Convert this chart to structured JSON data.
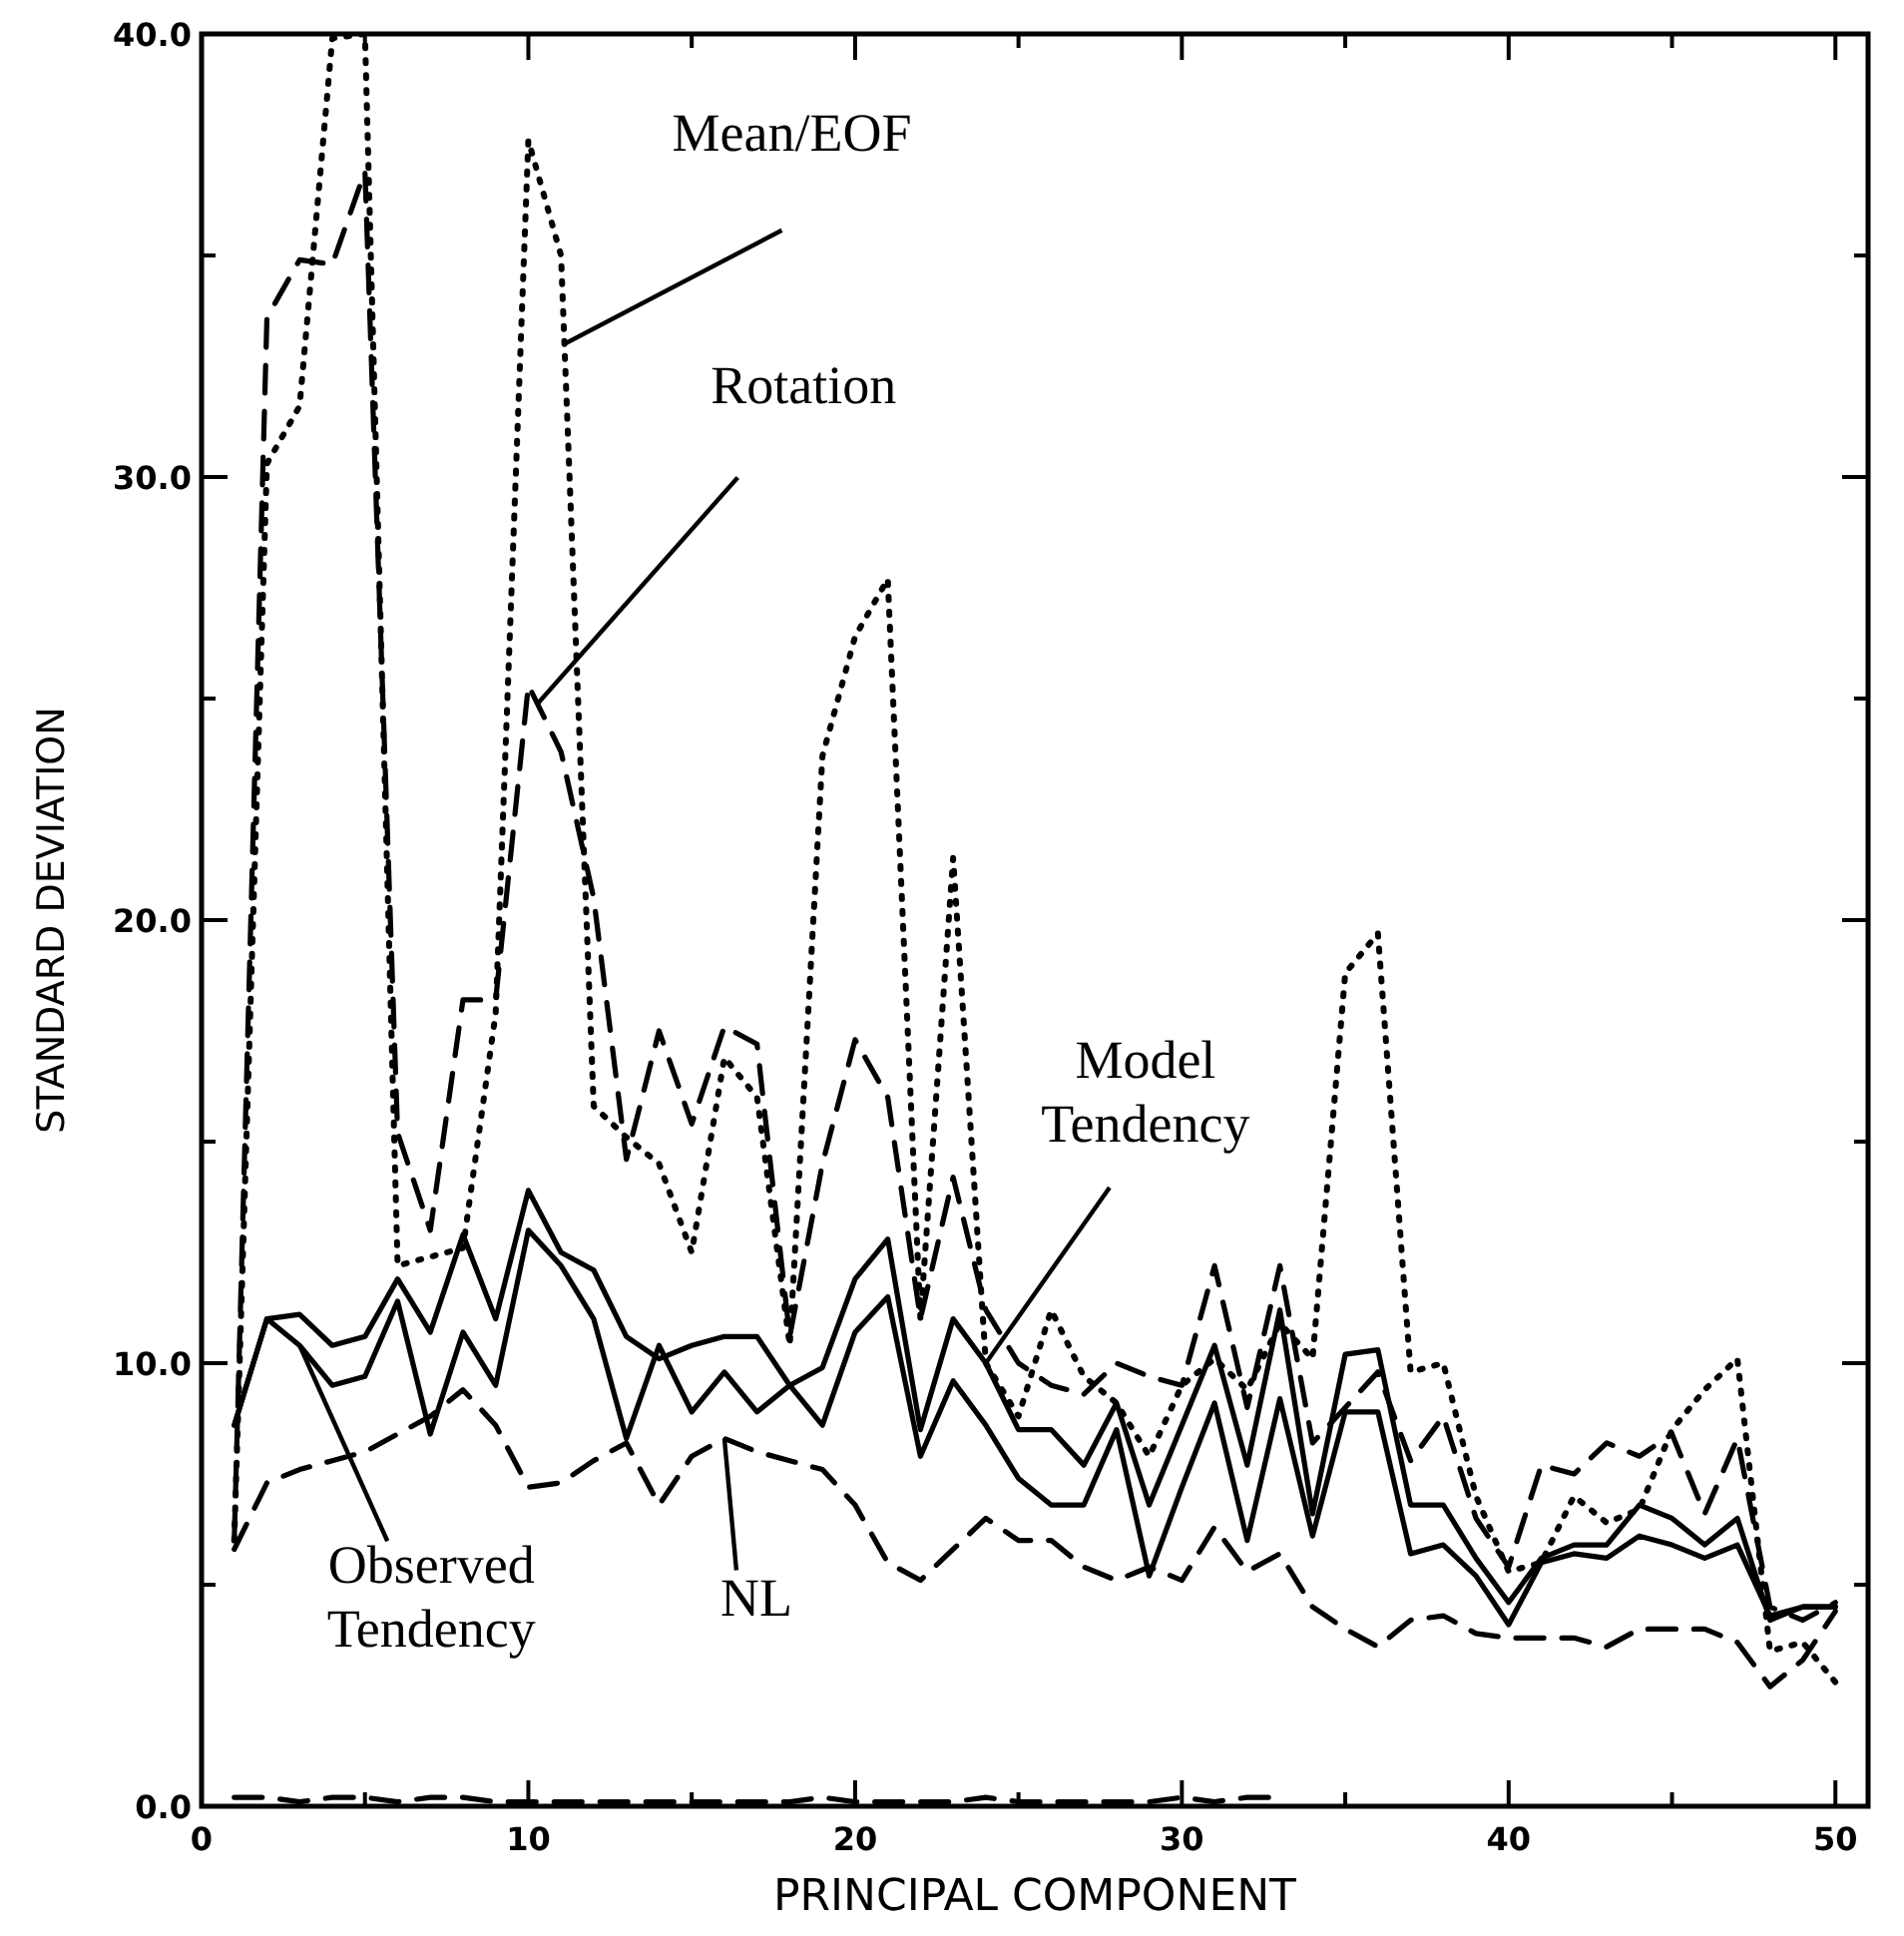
{
  "chart_data": {
    "type": "line",
    "xlabel": "PRINCIPAL COMPONENT",
    "ylabel": "STANDARD DEVIATION",
    "x": [
      1,
      2,
      3,
      4,
      5,
      6,
      7,
      8,
      9,
      10,
      11,
      12,
      13,
      14,
      15,
      16,
      17,
      18,
      19,
      20,
      21,
      22,
      23,
      24,
      25,
      26,
      27,
      28,
      29,
      30,
      31,
      32,
      33,
      34,
      35,
      36,
      37,
      38,
      39,
      40,
      41,
      42,
      43,
      44,
      45,
      46,
      47,
      48,
      49,
      50
    ],
    "xlim": [
      0,
      51
    ],
    "xticks": [
      0,
      {
        "value": 5,
        "label": null
      },
      10,
      {
        "value": 15,
        "label": null
      },
      20,
      {
        "value": 25,
        "label": null
      },
      30,
      {
        "value": 35,
        "label": null
      },
      40,
      {
        "value": 45,
        "label": null
      },
      50
    ],
    "annotations": [
      {
        "text": "Mean/EOF",
        "x": 11.1,
        "y": 33.0
      },
      {
        "text": "Rotation",
        "x": 10.3,
        "y": 24.9
      },
      {
        "text": "Model Tendency",
        "x": 24,
        "y": 10.0
      },
      {
        "text": "Observed Tendency",
        "x": 3,
        "y": 10.4
      },
      {
        "text": "NL",
        "x": 16,
        "y": 8.3
      }
    ],
    "ylim": [
      0,
      40
    ],
    "yticks": [
      {
        "value": 0,
        "label": "0.0"
      },
      {
        "value": 5,
        "label": null
      },
      {
        "value": 10,
        "label": "10.0"
      },
      {
        "value": 15,
        "label": null
      },
      {
        "value": 20,
        "label": "20.0"
      },
      {
        "value": 25,
        "label": null
      },
      {
        "value": 30,
        "label": "30.0"
      },
      {
        "value": 35,
        "label": null
      },
      {
        "value": 40,
        "label": "40.0"
      }
    ],
    "series": [
      {
        "color": "#000000",
        "line_style": "dotted",
        "values": [
          6.0,
          30.3,
          31.6,
          39.9,
          40.0,
          12.2,
          12.4,
          12.6,
          17.9,
          37.6,
          35.0,
          15.8,
          15.1,
          14.5,
          12.5,
          16.9,
          16.0,
          10.4,
          23.7,
          26.4,
          27.7,
          11.0,
          21.4,
          10.0,
          8.8,
          11.2,
          9.7,
          9.1,
          7.9,
          9.5,
          10.1,
          9.4,
          10.9,
          10.1,
          18.8,
          19.7,
          9.8,
          10.0,
          7.0,
          5.3,
          5.5,
          7.0,
          6.4,
          6.7,
          8.5,
          9.4,
          10.1,
          3.5,
          3.7,
          2.8
        ]
      },
      {
        "color": "#000000",
        "line_style": "dashed",
        "values": [
          6.0,
          33.6,
          34.9,
          34.8,
          36.9,
          15.2,
          13.0,
          18.2,
          18.2,
          25.3,
          23.8,
          20.5,
          14.6,
          17.5,
          15.4,
          17.6,
          17.2,
          10.6,
          14.5,
          17.3,
          16.0,
          11.0,
          14.2,
          11.2,
          10.0,
          9.5,
          9.3,
          10.0,
          9.7,
          9.5,
          12.2,
          9.0,
          12.2,
          8.2,
          9.0,
          9.8,
          7.8,
          8.8,
          6.5,
          5.4,
          7.7,
          7.5,
          8.2,
          7.9,
          8.4,
          6.6,
          8.3,
          4.5,
          4.2,
          4.6
        ]
      },
      {
        "color": "#000000",
        "line_style": "solid",
        "values": [
          8.6,
          11.0,
          11.1,
          10.4,
          10.6,
          11.9,
          10.7,
          12.9,
          11.0,
          13.9,
          12.5,
          12.1,
          10.6,
          10.1,
          10.4,
          10.6,
          10.6,
          9.5,
          9.9,
          11.9,
          12.8,
          8.5,
          11.0,
          10.0,
          8.5,
          8.5,
          7.7,
          9.1,
          6.8,
          8.6,
          10.4,
          7.7,
          11.2,
          6.6,
          10.2,
          10.3,
          6.8,
          6.8,
          5.6,
          4.6,
          5.6,
          5.9,
          5.9,
          6.8,
          6.5,
          5.9,
          6.5,
          4.2,
          4.5,
          4.5
        ]
      },
      {
        "color": "#000000",
        "line_style": "solid",
        "values": [
          8.6,
          11.0,
          10.4,
          9.5,
          9.7,
          11.4,
          8.4,
          10.7,
          9.5,
          13.0,
          12.2,
          11.0,
          8.3,
          10.4,
          8.9,
          9.8,
          8.9,
          9.5,
          8.6,
          10.7,
          11.5,
          7.9,
          9.6,
          8.6,
          7.4,
          6.8,
          6.8,
          8.5,
          5.2,
          7.2,
          9.1,
          6.0,
          9.2,
          6.1,
          8.9,
          8.9,
          5.7,
          5.9,
          5.2,
          4.1,
          5.5,
          5.7,
          5.6,
          6.1,
          5.9,
          5.6,
          5.9,
          4.3,
          4.5,
          4.5
        ]
      },
      {
        "color": "#000000",
        "line_style": "dashed",
        "values": [
          5.8,
          7.3,
          7.6,
          7.8,
          8.0,
          8.4,
          8.8,
          9.4,
          8.6,
          7.2,
          7.3,
          7.8,
          8.2,
          6.8,
          7.9,
          8.3,
          8.0,
          7.8,
          7.6,
          6.8,
          5.5,
          5.1,
          5.8,
          6.5,
          6.0,
          6.0,
          5.4,
          5.1,
          5.4,
          5.1,
          6.3,
          5.3,
          5.7,
          4.5,
          4.0,
          3.6,
          4.2,
          4.3,
          3.9,
          3.8,
          3.8,
          3.8,
          3.6,
          4.0,
          4.0,
          4.0,
          3.7,
          2.7,
          3.3,
          4.4
        ]
      },
      {
        "color": "#000000",
        "line_style": "dashed",
        "x": [
          1,
          2,
          3,
          4,
          5,
          6,
          7,
          8,
          9,
          10,
          11,
          12,
          13,
          14,
          15,
          16,
          17,
          18,
          19,
          20,
          21,
          22,
          23,
          24,
          25,
          26,
          27,
          28,
          29,
          30,
          31,
          32,
          33
        ],
        "values": [
          0.2,
          0.2,
          0.1,
          0.2,
          0.2,
          0.1,
          0.2,
          0.2,
          0.1,
          0.1,
          0.1,
          0.1,
          0.1,
          0.1,
          0.1,
          0.1,
          0.1,
          0.1,
          0.2,
          0.1,
          0.1,
          0.1,
          0.1,
          0.2,
          0.1,
          0.1,
          0.1,
          0.1,
          0.1,
          0.2,
          0.1,
          0.2,
          0.2
        ]
      }
    ]
  }
}
